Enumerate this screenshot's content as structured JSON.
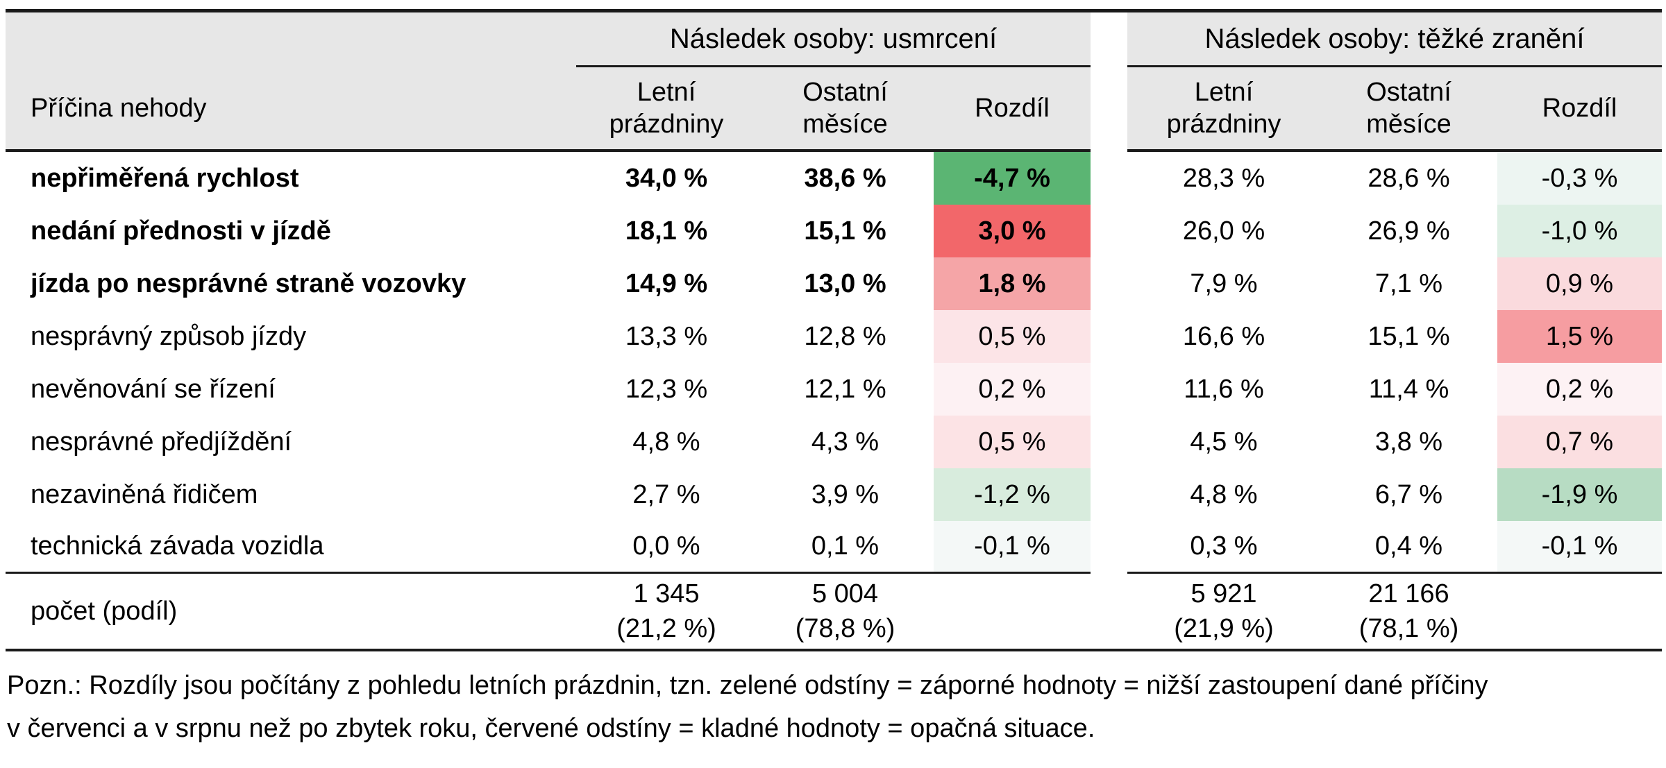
{
  "table": {
    "corner_header": "Příčina nehody",
    "groups": [
      {
        "title": "Následek osoby: usmrcení",
        "columns": [
          "Letní prázdniny",
          "Ostatní měsíce",
          "Rozdíl"
        ]
      },
      {
        "title": "Následek osoby: těžké zranění",
        "columns": [
          "Letní prázdniny",
          "Ostatní měsíce",
          "Rozdíl"
        ]
      }
    ],
    "rows": [
      {
        "cause": "nepřiměřená rychlost",
        "bold": true,
        "g1": [
          "34,0 %",
          "38,6 %",
          "-4,7 %"
        ],
        "g2": [
          "28,3 %",
          "28,6 %",
          "-0,3 %"
        ],
        "colors": {
          "g1": "#5bb573",
          "g2": "#edf5f2"
        }
      },
      {
        "cause": "nedání přednosti v jízdě",
        "bold": true,
        "g1": [
          "18,1 %",
          "15,1 %",
          "3,0 %"
        ],
        "g2": [
          "26,0 %",
          "26,9 %",
          "-1,0 %"
        ],
        "colors": {
          "g1": "#f2676a",
          "g2": "#ddefe4"
        }
      },
      {
        "cause": "jízda po nesprávné straně vozovky",
        "bold": true,
        "g1": [
          "14,9 %",
          "13,0 %",
          "1,8 %"
        ],
        "g2": [
          "7,9 %",
          "7,1 %",
          "0,9 %"
        ],
        "colors": {
          "g1": "#f5a5a7",
          "g2": "#fadadd"
        }
      },
      {
        "cause": "nesprávný způsob jízdy",
        "bold": false,
        "g1": [
          "13,3 %",
          "12,8 %",
          "0,5 %"
        ],
        "g2": [
          "16,6 %",
          "15,1 %",
          "1,5 %"
        ],
        "colors": {
          "g1": "#fce4e7",
          "g2": "#f69da1"
        }
      },
      {
        "cause": "nevěnování se řízení",
        "bold": false,
        "g1": [
          "12,3 %",
          "12,1 %",
          "0,2 %"
        ],
        "g2": [
          "11,6 %",
          "11,4 %",
          "0,2 %"
        ],
        "colors": {
          "g1": "#fdf1f3",
          "g2": "#fdf2f4"
        }
      },
      {
        "cause": "nesprávné předjíždění",
        "bold": false,
        "g1": [
          "4,8 %",
          "4,3 %",
          "0,5 %"
        ],
        "g2": [
          "4,5 %",
          "3,8 %",
          "0,7 %"
        ],
        "colors": {
          "g1": "#fce3e5",
          "g2": "#fbdfe1"
        }
      },
      {
        "cause": "nezaviněná řidičem",
        "bold": false,
        "g1": [
          "2,7 %",
          "3,9 %",
          "-1,2 %"
        ],
        "g2": [
          "4,8 %",
          "6,7 %",
          "-1,9 %"
        ],
        "colors": {
          "g1": "#d8ecdd",
          "g2": "#b7dcc3"
        }
      },
      {
        "cause": "technická závada vozidla",
        "bold": false,
        "g1": [
          "0,0 %",
          "0,1 %",
          "-0,1 %"
        ],
        "g2": [
          "0,3 %",
          "0,4 %",
          "-0,1 %"
        ],
        "colors": {
          "g1": "#f4f8f7",
          "g2": "#f4f8f7"
        }
      }
    ],
    "summary": {
      "label": "počet (podíl)",
      "g1": [
        {
          "count": "1 345",
          "share": "(21,2 %)"
        },
        {
          "count": "5 004",
          "share": "(78,8 %)"
        }
      ],
      "g2": [
        {
          "count": "5 921",
          "share": "(21,9 %)"
        },
        {
          "count": "21 166",
          "share": "(78,1 %)"
        }
      ]
    }
  },
  "note": {
    "line1": "Pozn.: Rozdíly jsou počítány z pohledu letních prázdnin, tzn. zelené odstíny = záporné hodnoty = nižší zastoupení dané příčiny",
    "line2": "v červenci a v srpnu než po zbytek roku, červené odstíny = kladné hodnoty = opačná situace."
  }
}
